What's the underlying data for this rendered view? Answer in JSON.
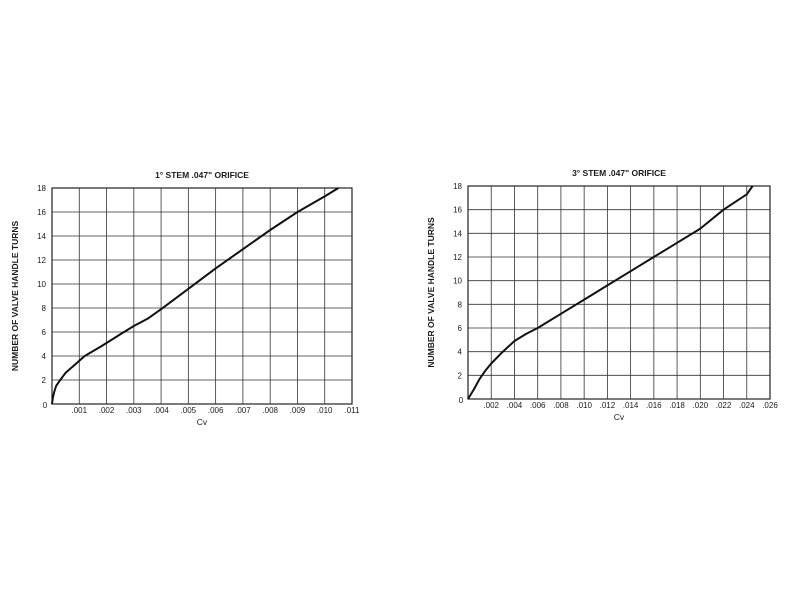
{
  "chart_data": [
    {
      "type": "line",
      "title": "1° STEM .047\" ORIFICE",
      "xlabel": "Cv",
      "ylabel": "NUMBER OF VALVE HANDLE TURNS",
      "xlim": [
        0,
        0.011
      ],
      "ylim": [
        0,
        18
      ],
      "x_ticks": [
        ".001",
        ".002",
        ".003",
        ".004",
        ".005",
        ".006",
        ".007",
        ".008",
        ".009",
        ".010",
        ".011"
      ],
      "x_origin_label": "0",
      "y_ticks": [
        "2",
        "4",
        "6",
        "8",
        "10",
        "12",
        "14",
        "16",
        "18"
      ],
      "grid": true,
      "series": [
        {
          "x": [
            0.0,
            3e-05,
            8e-05,
            0.00015,
            0.0003,
            0.0005,
            0.0008,
            0.0012,
            0.0018,
            0.0025,
            0.003,
            0.0035,
            0.004,
            0.005,
            0.006,
            0.007,
            0.008,
            0.009,
            0.01,
            0.0105
          ],
          "y": [
            0.0,
            0.5,
            1.0,
            1.5,
            2.0,
            2.6,
            3.2,
            4.0,
            4.8,
            5.8,
            6.5,
            7.1,
            7.9,
            9.6,
            11.3,
            12.9,
            14.5,
            16.0,
            17.3,
            18.0
          ]
        }
      ]
    },
    {
      "type": "line",
      "title": "3° STEM .047\" ORIFICE",
      "xlabel": "Cv",
      "ylabel": "NUMBER OF VALVE HANDLE TURNS",
      "xlim": [
        0,
        0.026
      ],
      "ylim": [
        0,
        18
      ],
      "x_ticks": [
        ".002",
        ".004",
        ".006",
        ".008",
        ".010",
        ".012",
        ".014",
        ".016",
        ".018",
        ".020",
        ".022",
        ".024",
        ".026"
      ],
      "x_origin_label": "0",
      "y_ticks": [
        "2",
        "4",
        "6",
        "8",
        "10",
        "12",
        "14",
        "16",
        "18"
      ],
      "grid": true,
      "series": [
        {
          "x": [
            0.0,
            0.0005,
            0.001,
            0.0015,
            0.002,
            0.003,
            0.004,
            0.005,
            0.006,
            0.008,
            0.01,
            0.012,
            0.014,
            0.016,
            0.018,
            0.02,
            0.022,
            0.024,
            0.0245
          ],
          "y": [
            0.0,
            0.8,
            1.7,
            2.4,
            3.0,
            4.0,
            4.9,
            5.5,
            6.0,
            7.2,
            8.4,
            9.6,
            10.8,
            12.0,
            13.2,
            14.4,
            16.0,
            17.3,
            18.0
          ]
        }
      ]
    }
  ]
}
